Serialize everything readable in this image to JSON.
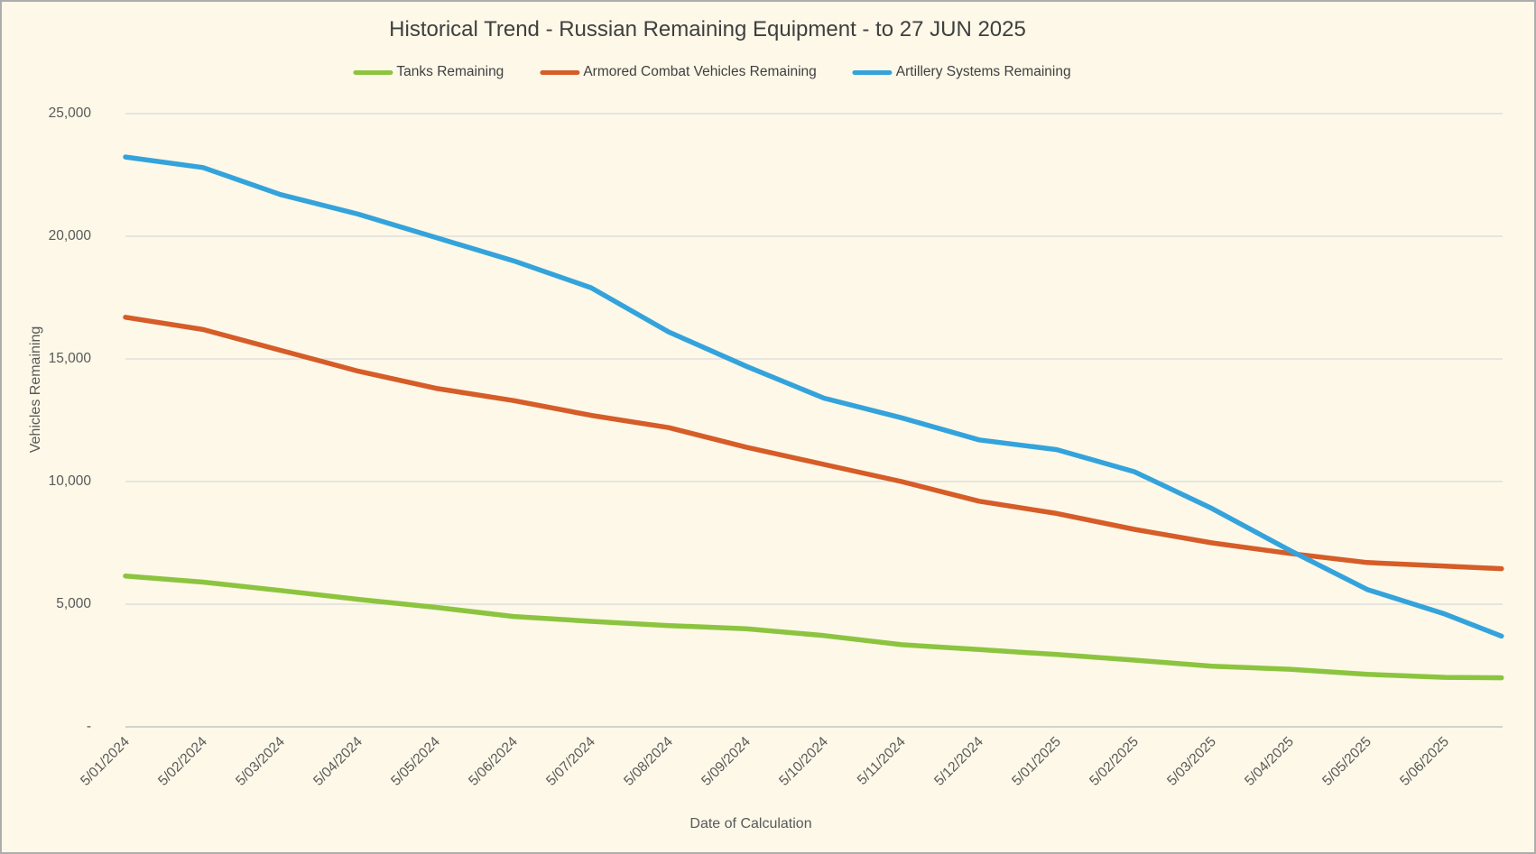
{
  "chart_data": {
    "type": "line",
    "title": "Historical Trend - Russian Remaining Equipment - to 27 JUN 2025",
    "xlabel": "Date of Calculation",
    "ylabel": "Vehicles Remaining",
    "ylim": [
      0,
      25000
    ],
    "grid": "horizontal-only",
    "legend_position": "top",
    "y_tick_labels": [
      "25,000",
      "20,000",
      "15,000",
      "10,000",
      "5,000",
      "-"
    ],
    "y_tick_values": [
      25000,
      20000,
      15000,
      10000,
      5000,
      0
    ],
    "x_tick_labels": [
      "5/01/2024",
      "5/02/2024",
      "5/03/2024",
      "5/04/2024",
      "5/05/2024",
      "5/06/2024",
      "5/07/2024",
      "5/08/2024",
      "5/09/2024",
      "5/10/2024",
      "5/11/2024",
      "5/12/2024",
      "5/01/2025",
      "5/02/2025",
      "5/03/2025",
      "5/04/2025",
      "5/05/2025",
      "5/06/2025"
    ],
    "categories": [
      "5/01/2024",
      "5/02/2024",
      "5/03/2024",
      "5/04/2024",
      "5/05/2024",
      "5/06/2024",
      "5/07/2024",
      "5/08/2024",
      "5/09/2024",
      "5/10/2024",
      "5/11/2024",
      "5/12/2024",
      "5/01/2025",
      "5/02/2025",
      "5/03/2025",
      "5/04/2025",
      "5/05/2025",
      "5/06/2025",
      "27/06/2025"
    ],
    "month_positions": [
      0,
      1,
      2,
      3,
      4,
      5,
      6,
      7,
      8,
      9,
      10,
      11,
      12,
      13,
      14,
      15,
      16,
      17,
      17.73
    ],
    "series": [
      {
        "name": "Tanks Remaining",
        "color": "#8CC43F",
        "values": [
          6150,
          5900,
          5560,
          5200,
          4870,
          4500,
          4300,
          4130,
          4000,
          3720,
          3350,
          3150,
          2950,
          2720,
          2475,
          2350,
          2140,
          2020,
          2000
        ]
      },
      {
        "name": "Armored Combat Vehicles Remaining",
        "color": "#D65C28",
        "values": [
          16700,
          16200,
          15350,
          14500,
          13800,
          13300,
          12700,
          12200,
          11400,
          10700,
          10000,
          9200,
          8700,
          8050,
          7500,
          7070,
          6700,
          6550,
          6450
        ]
      },
      {
        "name": "Artillery Systems Remaining",
        "color": "#34A3DC",
        "values": [
          23230,
          22800,
          21700,
          20900,
          19950,
          19000,
          17900,
          16100,
          14700,
          13400,
          12600,
          11700,
          11300,
          10400,
          8900,
          7200,
          5600,
          4600,
          3700
        ]
      }
    ]
  },
  "colors": {
    "background": "#FDF8E8",
    "gridline": "#D9D9D9",
    "axis_line": "#C6C6C6",
    "label_text": "#595959",
    "title_text": "#3F3F3F",
    "border": "#ADADAD"
  }
}
